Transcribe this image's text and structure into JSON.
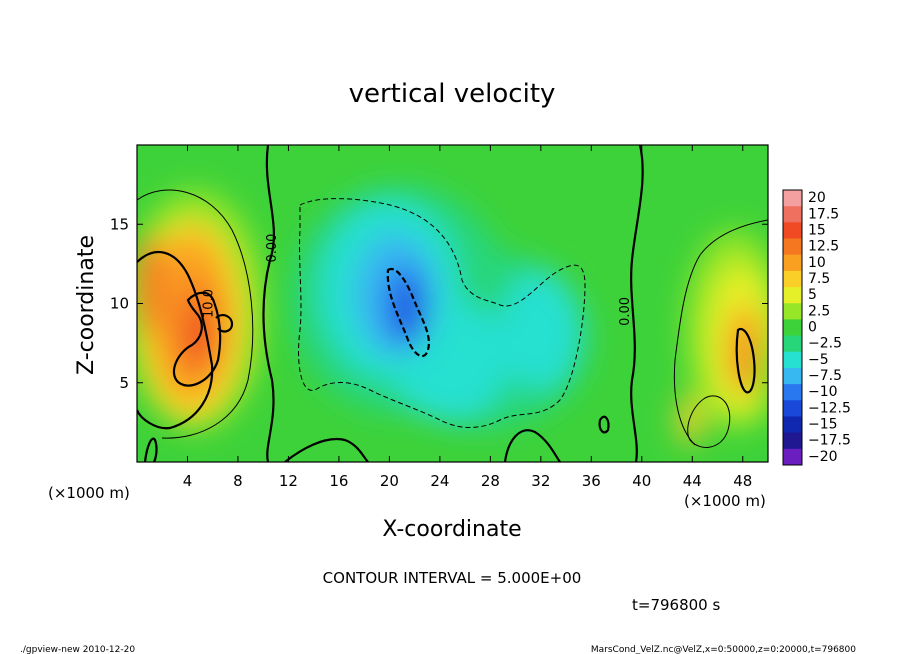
{
  "chart_data": {
    "type": "heatmap",
    "title": "vertical velocity",
    "xlabel": "X-coordinate",
    "ylabel": "Z-coordinate",
    "x_unit_left": "(×1000 m)",
    "x_unit_right": "(×1000 m)",
    "xlim": [
      0,
      50
    ],
    "ylim": [
      0,
      20
    ],
    "x_ticks": [
      4,
      8,
      12,
      16,
      20,
      24,
      28,
      32,
      36,
      40,
      44,
      48
    ],
    "y_ticks": [
      5,
      10,
      15
    ],
    "contour_interval_text": "CONTOUR INTERVAL = 5.000E+00",
    "time_text": "t=796800 s",
    "footer_left": "./gpview-new  2010-12-20",
    "footer_right": "MarsCond_VelZ.nc@VelZ,x=0:50000,z=0:20000,t=796800",
    "contour_labels": [
      {
        "text": "0.00",
        "x": 11,
        "z": 13.5
      },
      {
        "text": "10.0",
        "x": 6,
        "z": 10
      },
      {
        "text": "0.00",
        "x": 39,
        "z": 9.5
      }
    ],
    "colorbar": {
      "labels": [
        "20",
        "17.5",
        "15",
        "12.5",
        "10",
        "7.5",
        "5",
        "2.5",
        "0",
        "−2.5",
        "−5",
        "−7.5",
        "−10",
        "−12.5",
        "−15",
        "−17.5",
        "−20"
      ],
      "colors": [
        "#f5a0a0",
        "#f07060",
        "#f04a24",
        "#f57820",
        "#faa020",
        "#fad028",
        "#e6f028",
        "#98e628",
        "#3ed23a",
        "#28d67a",
        "#26e0d0",
        "#38b8f0",
        "#2a78f0",
        "#1a48d8",
        "#1028b0",
        "#201890",
        "#6a1ec0"
      ]
    },
    "features": [
      {
        "x": 5.5,
        "z": 8,
        "w": 12,
        "label": "updraft-left"
      },
      {
        "x": 2,
        "z": 10.5,
        "w": 8,
        "label": "updraft-left-edge"
      },
      {
        "x": 47,
        "z": 7,
        "w": 10,
        "label": "updraft-right"
      },
      {
        "x": 45,
        "z": 3,
        "w": 6,
        "label": "updraft-right-low"
      },
      {
        "x": 21.5,
        "z": 10,
        "w": -14,
        "label": "downdraft-center"
      },
      {
        "x": 25,
        "z": 6,
        "w": -6,
        "label": "downdraft-lower"
      },
      {
        "x": 32,
        "z": 8,
        "w": -5,
        "label": "downdraft-right"
      }
    ]
  }
}
